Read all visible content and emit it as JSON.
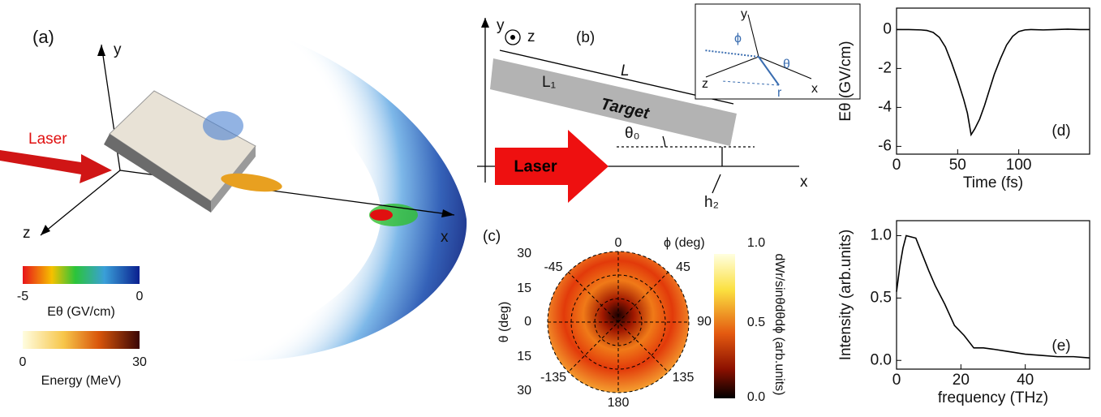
{
  "panel_a": {
    "label": "(a)",
    "y": "y",
    "z": "z",
    "x": "x",
    "laser": "Laser",
    "e_min": "-5",
    "e_max": "0",
    "e_title": "Eθ (GV/cm)",
    "energy_min": "0",
    "energy_max": "30",
    "energy_title": "Energy (MeV)"
  },
  "panel_b": {
    "label": "(b)",
    "y": "y",
    "z": "z",
    "length": "L",
    "thickness": "L₁",
    "target": "Target",
    "angle": "θ₀",
    "laser": "Laser",
    "height": "h₂",
    "x": "x",
    "inset": {
      "y": "y",
      "phi": "ϕ",
      "z": "z",
      "theta": "θ",
      "r": "r",
      "x": "x"
    }
  },
  "panel_c": {
    "label": "(c)",
    "phi_title": "ϕ (deg)",
    "theta_title": "θ (deg)",
    "phi_labels": [
      "0",
      "45",
      "90",
      "135",
      "180",
      "-135",
      "-45"
    ],
    "theta_labels": [
      "30",
      "15",
      "0",
      "15",
      "30"
    ],
    "colorbar_labels": [
      "1.0",
      "0.5",
      "0.0"
    ],
    "colorbar_title": "dWr/sinθdθdϕ (arb.units)"
  },
  "chart_data": [
    {
      "type": "line",
      "annotation": "(d)",
      "x_label": "Time (fs)",
      "y_label": "Eθ (GV/cm)",
      "x": [
        0,
        10,
        20,
        25,
        30,
        35,
        40,
        45,
        50,
        55,
        58,
        61,
        64,
        68,
        72,
        76,
        80,
        85,
        90,
        95,
        100,
        105,
        110,
        120,
        130,
        140,
        150,
        158
      ],
      "values": [
        0,
        0,
        -0.02,
        -0.05,
        -0.15,
        -0.4,
        -0.9,
        -1.7,
        -2.6,
        -3.6,
        -4.3,
        -5.4,
        -5.1,
        -4.6,
        -3.9,
        -3.1,
        -2.3,
        -1.5,
        -0.8,
        -0.35,
        -0.1,
        -0.02,
        0,
        -0.02,
        0,
        0.02,
        0,
        0
      ],
      "color": "#000000",
      "xlim": [
        0,
        158
      ],
      "xticks": [
        0,
        50,
        100
      ],
      "ylim": [
        -6.4,
        1.1
      ],
      "yticks": [
        0,
        -2,
        -4,
        -6
      ]
    },
    {
      "type": "line",
      "annotation": "(e)",
      "x_label": "frequency (THz)",
      "y_label": "Intensity (arb.units)",
      "x": [
        0,
        1,
        2,
        3,
        6,
        8,
        10,
        12,
        15,
        18,
        21,
        24,
        27,
        30,
        35,
        40,
        45,
        50,
        55,
        60
      ],
      "values": [
        0.55,
        0.75,
        0.9,
        1.0,
        0.98,
        0.85,
        0.72,
        0.6,
        0.45,
        0.28,
        0.2,
        0.1,
        0.1,
        0.09,
        0.07,
        0.05,
        0.04,
        0.03,
        0.03,
        0.02
      ],
      "color": "#000000",
      "xlim": [
        0,
        60
      ],
      "xticks": [
        0,
        20,
        40
      ],
      "ylim": [
        -0.07,
        1.12
      ],
      "yticks": [
        {
          "value": 0,
          "label": "0.0"
        },
        0.5,
        {
          "value": 1,
          "label": "1.0"
        }
      ]
    }
  ]
}
